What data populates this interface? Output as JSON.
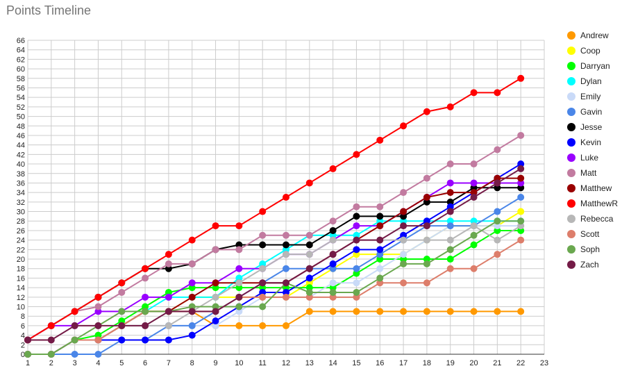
{
  "chart_data": {
    "type": "line",
    "title": "Points Timeline",
    "xlabel": "",
    "ylabel": "",
    "xlim": [
      1,
      23
    ],
    "ylim": [
      0,
      66
    ],
    "y_tick_step": 2,
    "x_ticks": [
      1,
      2,
      3,
      4,
      5,
      6,
      7,
      8,
      9,
      10,
      11,
      12,
      13,
      14,
      15,
      16,
      17,
      18,
      19,
      20,
      21,
      22,
      23
    ],
    "grid": true,
    "legend_position": "right",
    "x": [
      1,
      2,
      3,
      4,
      5,
      6,
      7,
      8,
      9,
      10,
      11,
      12,
      13,
      14,
      15,
      16,
      17,
      18,
      19,
      20,
      21,
      22
    ],
    "series": [
      {
        "name": "Andrew",
        "color": "#FF9900",
        "values": [
          0,
          0,
          3,
          3,
          6,
          9,
          9,
          9,
          6,
          6,
          6,
          6,
          9,
          9,
          9,
          9,
          9,
          9,
          9,
          9,
          9,
          9
        ]
      },
      {
        "name": "Coop",
        "color": "#FFFF00",
        "values": [
          0,
          0,
          3,
          3,
          6,
          9,
          9,
          12,
          12,
          12,
          12,
          12,
          15,
          18,
          21,
          21,
          21,
          24,
          27,
          27,
          27,
          30
        ]
      },
      {
        "name": "Darryan",
        "color": "#00FF00",
        "values": [
          0,
          0,
          3,
          4,
          7,
          10,
          13,
          14,
          14,
          14,
          14,
          14,
          14,
          14,
          17,
          20,
          20,
          20,
          20,
          23,
          26,
          26
        ]
      },
      {
        "name": "Dylan",
        "color": "#00FFFF",
        "values": [
          0,
          0,
          3,
          3,
          6,
          9,
          12,
          12,
          12,
          16,
          19,
          22,
          25,
          25,
          25,
          28,
          28,
          28,
          28,
          28,
          28,
          28
        ]
      },
      {
        "name": "Emily",
        "color": "#C9DAF8",
        "values": [
          0,
          0,
          3,
          3,
          6,
          6,
          6,
          6,
          6,
          9,
          12,
          12,
          12,
          15,
          15,
          18,
          21,
          24,
          27,
          27,
          27,
          27
        ]
      },
      {
        "name": "Gavin",
        "color": "#4A86E8",
        "values": [
          0,
          0,
          0,
          0,
          3,
          3,
          6,
          6,
          9,
          12,
          15,
          18,
          18,
          18,
          18,
          21,
          24,
          27,
          27,
          27,
          30,
          33
        ]
      },
      {
        "name": "Jesse",
        "color": "#000000",
        "values": [
          3,
          6,
          9,
          12,
          15,
          18,
          18,
          19,
          22,
          23,
          23,
          23,
          23,
          26,
          29,
          29,
          29,
          32,
          32,
          35,
          35,
          35
        ]
      },
      {
        "name": "Kevin",
        "color": "#0000FF",
        "values": [
          0,
          0,
          3,
          3,
          3,
          3,
          3,
          4,
          7,
          10,
          13,
          13,
          16,
          19,
          22,
          22,
          25,
          28,
          31,
          34,
          37,
          40
        ]
      },
      {
        "name": "Luke",
        "color": "#9900FF",
        "values": [
          3,
          6,
          6,
          9,
          9,
          12,
          12,
          15,
          15,
          18,
          18,
          21,
          21,
          24,
          27,
          27,
          30,
          33,
          36,
          36,
          36,
          36
        ]
      },
      {
        "name": "Matt",
        "color": "#C27BA0",
        "values": [
          3,
          6,
          9,
          10,
          13,
          16,
          19,
          19,
          22,
          22,
          25,
          25,
          25,
          28,
          31,
          31,
          34,
          37,
          40,
          40,
          43,
          46
        ]
      },
      {
        "name": "Matthew",
        "color": "#990000",
        "values": [
          0,
          0,
          3,
          3,
          6,
          9,
          9,
          12,
          15,
          15,
          15,
          15,
          18,
          21,
          24,
          27,
          30,
          33,
          34,
          34,
          37,
          37
        ]
      },
      {
        "name": "MatthewR",
        "color": "#FF0000",
        "values": [
          3,
          6,
          9,
          12,
          15,
          18,
          21,
          24,
          27,
          27,
          30,
          33,
          36,
          39,
          42,
          45,
          48,
          51,
          52,
          55,
          55,
          58
        ]
      },
      {
        "name": "Rebecca",
        "color": "#B7B7B7",
        "values": [
          0,
          0,
          3,
          3,
          6,
          6,
          6,
          9,
          12,
          15,
          18,
          21,
          21,
          24,
          24,
          24,
          24,
          24,
          24,
          27,
          24,
          27
        ]
      },
      {
        "name": "Scott",
        "color": "#DD7E6B",
        "values": [
          0,
          0,
          3,
          3,
          6,
          9,
          9,
          9,
          9,
          12,
          12,
          12,
          12,
          12,
          12,
          15,
          15,
          15,
          18,
          18,
          21,
          24
        ]
      },
      {
        "name": "Soph",
        "color": "#6AA84F",
        "values": [
          0,
          0,
          3,
          6,
          9,
          9,
          9,
          10,
          10,
          10,
          10,
          15,
          13,
          13,
          13,
          16,
          19,
          19,
          22,
          25,
          28,
          28
        ]
      },
      {
        "name": "Zach",
        "color": "#741B47",
        "values": [
          3,
          3,
          6,
          6,
          6,
          6,
          9,
          9,
          9,
          12,
          15,
          15,
          18,
          21,
          24,
          24,
          27,
          27,
          30,
          33,
          36,
          39
        ]
      }
    ]
  }
}
